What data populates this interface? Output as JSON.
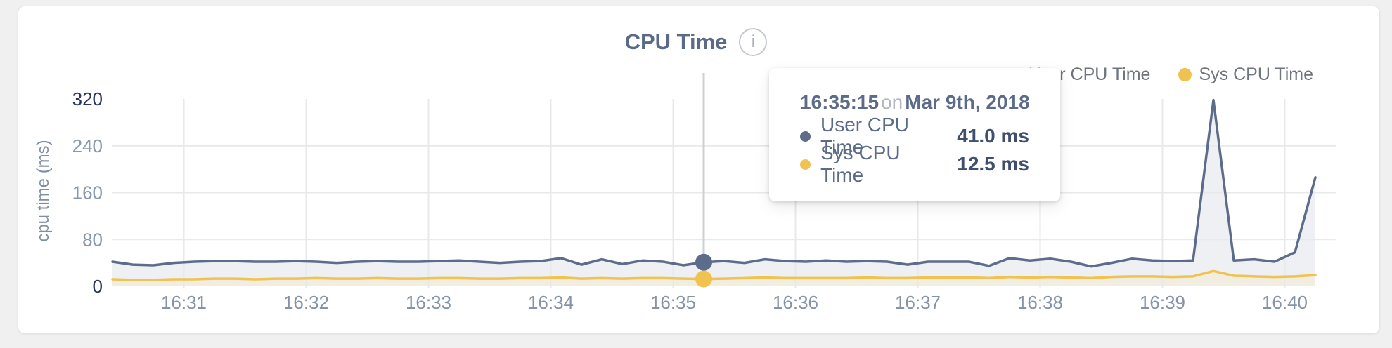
{
  "title": {
    "text": "CPU Time",
    "info_icon": "i"
  },
  "legend": {
    "items": [
      {
        "label": "User CPU Time",
        "color": "#5d6c8a"
      },
      {
        "label": "Sys CPU Time",
        "color": "#f0c24f"
      }
    ]
  },
  "tooltip": {
    "time": "16:35:15",
    "connector": "on",
    "date": "Mar 9th, 2018",
    "rows": [
      {
        "label": "User CPU Time",
        "value": "41.0 ms",
        "color": "#5d6c8a"
      },
      {
        "label": "Sys CPU Time",
        "value": "12.5 ms",
        "color": "#f0c24f"
      }
    ]
  },
  "colors": {
    "user_line": "#5d6c8a",
    "user_fill": "#eef0f4",
    "sys_line": "#f0c24f",
    "sys_fill": "#f1ede1",
    "gridline": "#e8e9eb",
    "crosshair": "#ccd0d6",
    "title_text": "#5b6a87",
    "axis_text": "#8593a8",
    "axis_text_strong": "#28375a",
    "card_background": "#ffffff",
    "page_background": "#f0f0f1"
  },
  "chart_data": {
    "type": "area",
    "title": "CPU Time",
    "xlabel": "",
    "ylabel": "cpu time (ms)",
    "ylim": [
      0,
      320
    ],
    "y_ticks": [
      0,
      80,
      160,
      240,
      320
    ],
    "x_ticks": [
      "16:31",
      "16:32",
      "16:33",
      "16:34",
      "16:35",
      "16:36",
      "16:37",
      "16:38",
      "16:39",
      "16:40"
    ],
    "grid": true,
    "legend_position": "top-right",
    "date": "Mar 9th, 2018",
    "x": [
      "16:30:25",
      "16:30:35",
      "16:30:45",
      "16:30:55",
      "16:31:05",
      "16:31:15",
      "16:31:25",
      "16:31:35",
      "16:31:45",
      "16:31:55",
      "16:32:05",
      "16:32:15",
      "16:32:25",
      "16:32:35",
      "16:32:45",
      "16:32:55",
      "16:33:05",
      "16:33:15",
      "16:33:25",
      "16:33:35",
      "16:33:45",
      "16:33:55",
      "16:34:05",
      "16:34:15",
      "16:34:25",
      "16:34:35",
      "16:34:45",
      "16:34:55",
      "16:35:05",
      "16:35:15",
      "16:35:25",
      "16:35:35",
      "16:35:45",
      "16:35:55",
      "16:36:05",
      "16:36:15",
      "16:36:25",
      "16:36:35",
      "16:36:45",
      "16:36:55",
      "16:37:05",
      "16:37:15",
      "16:37:25",
      "16:37:35",
      "16:37:45",
      "16:37:55",
      "16:38:05",
      "16:38:15",
      "16:38:25",
      "16:38:35",
      "16:38:45",
      "16:38:55",
      "16:39:05",
      "16:39:15",
      "16:39:25",
      "16:39:35",
      "16:39:45",
      "16:39:55",
      "16:40:05",
      "16:40:15"
    ],
    "series": [
      {
        "name": "User CPU Time",
        "color": "#5d6c8a",
        "fill": "#eef0f4",
        "unit": "ms",
        "values": [
          42,
          37,
          36,
          40,
          42,
          43,
          43,
          42,
          42,
          43,
          42,
          40,
          42,
          43,
          42,
          42,
          43,
          44,
          42,
          40,
          42,
          43,
          48,
          37,
          46,
          38,
          44,
          42,
          36,
          41,
          43,
          40,
          46,
          43,
          42,
          44,
          42,
          43,
          42,
          37,
          42,
          42,
          42,
          35,
          48,
          44,
          47,
          42,
          34,
          40,
          47,
          44,
          43,
          44,
          318,
          44,
          46,
          42,
          58,
          186
        ]
      },
      {
        "name": "Sys CPU Time",
        "color": "#f0c24f",
        "fill": "#f1ede1",
        "unit": "ms",
        "values": [
          12,
          11,
          11,
          12,
          12,
          13,
          13,
          12,
          13,
          13,
          14,
          13,
          13,
          14,
          13,
          13,
          14,
          14,
          13,
          13,
          14,
          14,
          15,
          13,
          14,
          13,
          14,
          14,
          13,
          12.5,
          13,
          14,
          15,
          14,
          14,
          14,
          14,
          15,
          14,
          14,
          15,
          15,
          15,
          14,
          16,
          15,
          16,
          15,
          14,
          16,
          17,
          17,
          16,
          17,
          26,
          18,
          17,
          16,
          17,
          19
        ]
      }
    ],
    "hover": {
      "time": "16:35:15",
      "user_ms": 41.0,
      "sys_ms": 12.5
    }
  }
}
